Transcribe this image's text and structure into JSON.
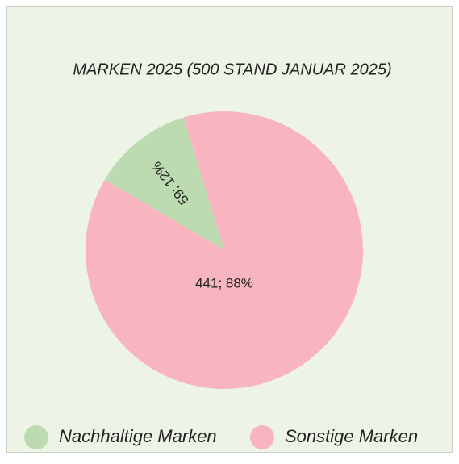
{
  "chart_data": {
    "type": "pie",
    "title": "MARKEN 2025 (500 STAND JANUAR 2025)",
    "categories": [
      "Nachhaltige Marken",
      "Sonstige Marken"
    ],
    "values": [
      59,
      441
    ],
    "value_labels": [
      "59; 12%",
      "441; 88%"
    ],
    "colors": [
      "#bddbb1",
      "#f8b5bf"
    ],
    "legend": "bottom"
  }
}
